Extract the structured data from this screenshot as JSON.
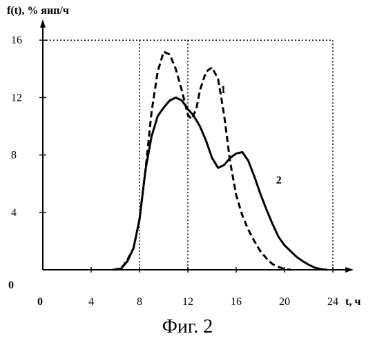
{
  "chart_data": {
    "type": "line",
    "ylabel": "f(t), % яип/ч",
    "xlabel": "t, ч",
    "origin_x_label": "0",
    "origin_y_label": "0",
    "xticks": [
      4,
      8,
      12,
      16,
      20,
      24
    ],
    "yticks": [
      4,
      8,
      12,
      16
    ],
    "xlim": [
      0,
      25
    ],
    "ylim": [
      0,
      17
    ],
    "reference_lines_x": [
      8,
      12,
      24
    ],
    "reference_lines_y": [
      16
    ],
    "series": [
      {
        "name": "1",
        "style": "dashed",
        "points": [
          [
            5.8,
            0
          ],
          [
            6.5,
            0.1
          ],
          [
            7,
            0.7
          ],
          [
            7.5,
            1.5
          ],
          [
            8,
            3.5
          ],
          [
            8.5,
            7
          ],
          [
            9,
            11
          ],
          [
            9.5,
            13.8
          ],
          [
            10,
            15.2
          ],
          [
            10.5,
            15
          ],
          [
            11,
            14
          ],
          [
            11.5,
            12.5
          ],
          [
            12,
            10.8
          ],
          [
            12.3,
            10.5
          ],
          [
            12.7,
            11.2
          ],
          [
            13,
            12.5
          ],
          [
            13.5,
            13.8
          ],
          [
            14,
            14.1
          ],
          [
            14.5,
            13.3
          ],
          [
            15,
            10.8
          ],
          [
            15.5,
            7.5
          ],
          [
            16,
            5.2
          ],
          [
            16.5,
            3.8
          ],
          [
            17,
            2.8
          ],
          [
            17.5,
            2
          ],
          [
            18,
            1.3
          ],
          [
            18.5,
            0.8
          ],
          [
            19,
            0.4
          ],
          [
            19.5,
            0.2
          ],
          [
            20,
            0.05
          ],
          [
            20.5,
            0
          ]
        ]
      },
      {
        "name": "2",
        "style": "solid",
        "points": [
          [
            6,
            0
          ],
          [
            6.5,
            0.1
          ],
          [
            7,
            0.6
          ],
          [
            7.5,
            1.5
          ],
          [
            8,
            3.5
          ],
          [
            8.5,
            7
          ],
          [
            9,
            9.3
          ],
          [
            9.5,
            10.7
          ],
          [
            10,
            11.3
          ],
          [
            10.5,
            11.8
          ],
          [
            11,
            12
          ],
          [
            11.5,
            11.8
          ],
          [
            12,
            11.2
          ],
          [
            12.5,
            10.7
          ],
          [
            13,
            10
          ],
          [
            13.5,
            9
          ],
          [
            14,
            7.8
          ],
          [
            14.5,
            7.1
          ],
          [
            15,
            7.3
          ],
          [
            15.5,
            7.8
          ],
          [
            16,
            8.1
          ],
          [
            16.5,
            8.2
          ],
          [
            17,
            7.6
          ],
          [
            17.5,
            6.5
          ],
          [
            18,
            5.3
          ],
          [
            18.5,
            4.2
          ],
          [
            19,
            3.2
          ],
          [
            19.5,
            2.3
          ],
          [
            20,
            1.7
          ],
          [
            20.5,
            1.3
          ],
          [
            21,
            0.9
          ],
          [
            21.5,
            0.6
          ],
          [
            22,
            0.35
          ],
          [
            22.5,
            0.15
          ],
          [
            23,
            0.05
          ],
          [
            23.5,
            0
          ]
        ]
      }
    ]
  },
  "caption": "Фиг. 2"
}
